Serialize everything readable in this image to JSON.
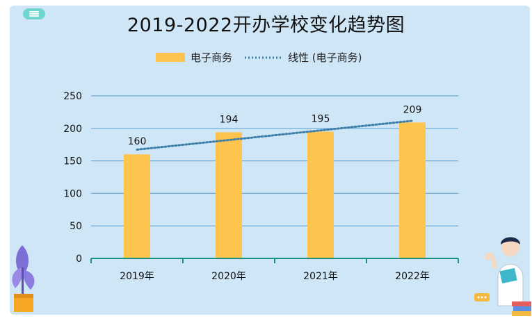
{
  "chart_data": {
    "type": "bar",
    "title": "2019-2022开办学校变化趋势图",
    "categories": [
      "2019年",
      "2020年",
      "2021年",
      "2022年"
    ],
    "series": [
      {
        "name": "电子商务",
        "values": [
          160,
          194,
          195,
          209
        ],
        "color": "#ffc44d"
      }
    ],
    "trendline": {
      "name": "线性 (电子商务)",
      "type": "linear",
      "color": "#3d7fa6"
    },
    "ylim": [
      0,
      250
    ],
    "yticks": [
      0,
      50,
      100,
      150,
      200,
      250
    ],
    "grid": true,
    "legend_position": "top"
  },
  "colors": {
    "background": "#cfe6f7",
    "grid": "#6aa9d6",
    "axis": "#17927f"
  },
  "icons": {
    "menu": "menu-icon",
    "plant": "plant-decoration",
    "person": "teacher-with-book-decoration"
  }
}
